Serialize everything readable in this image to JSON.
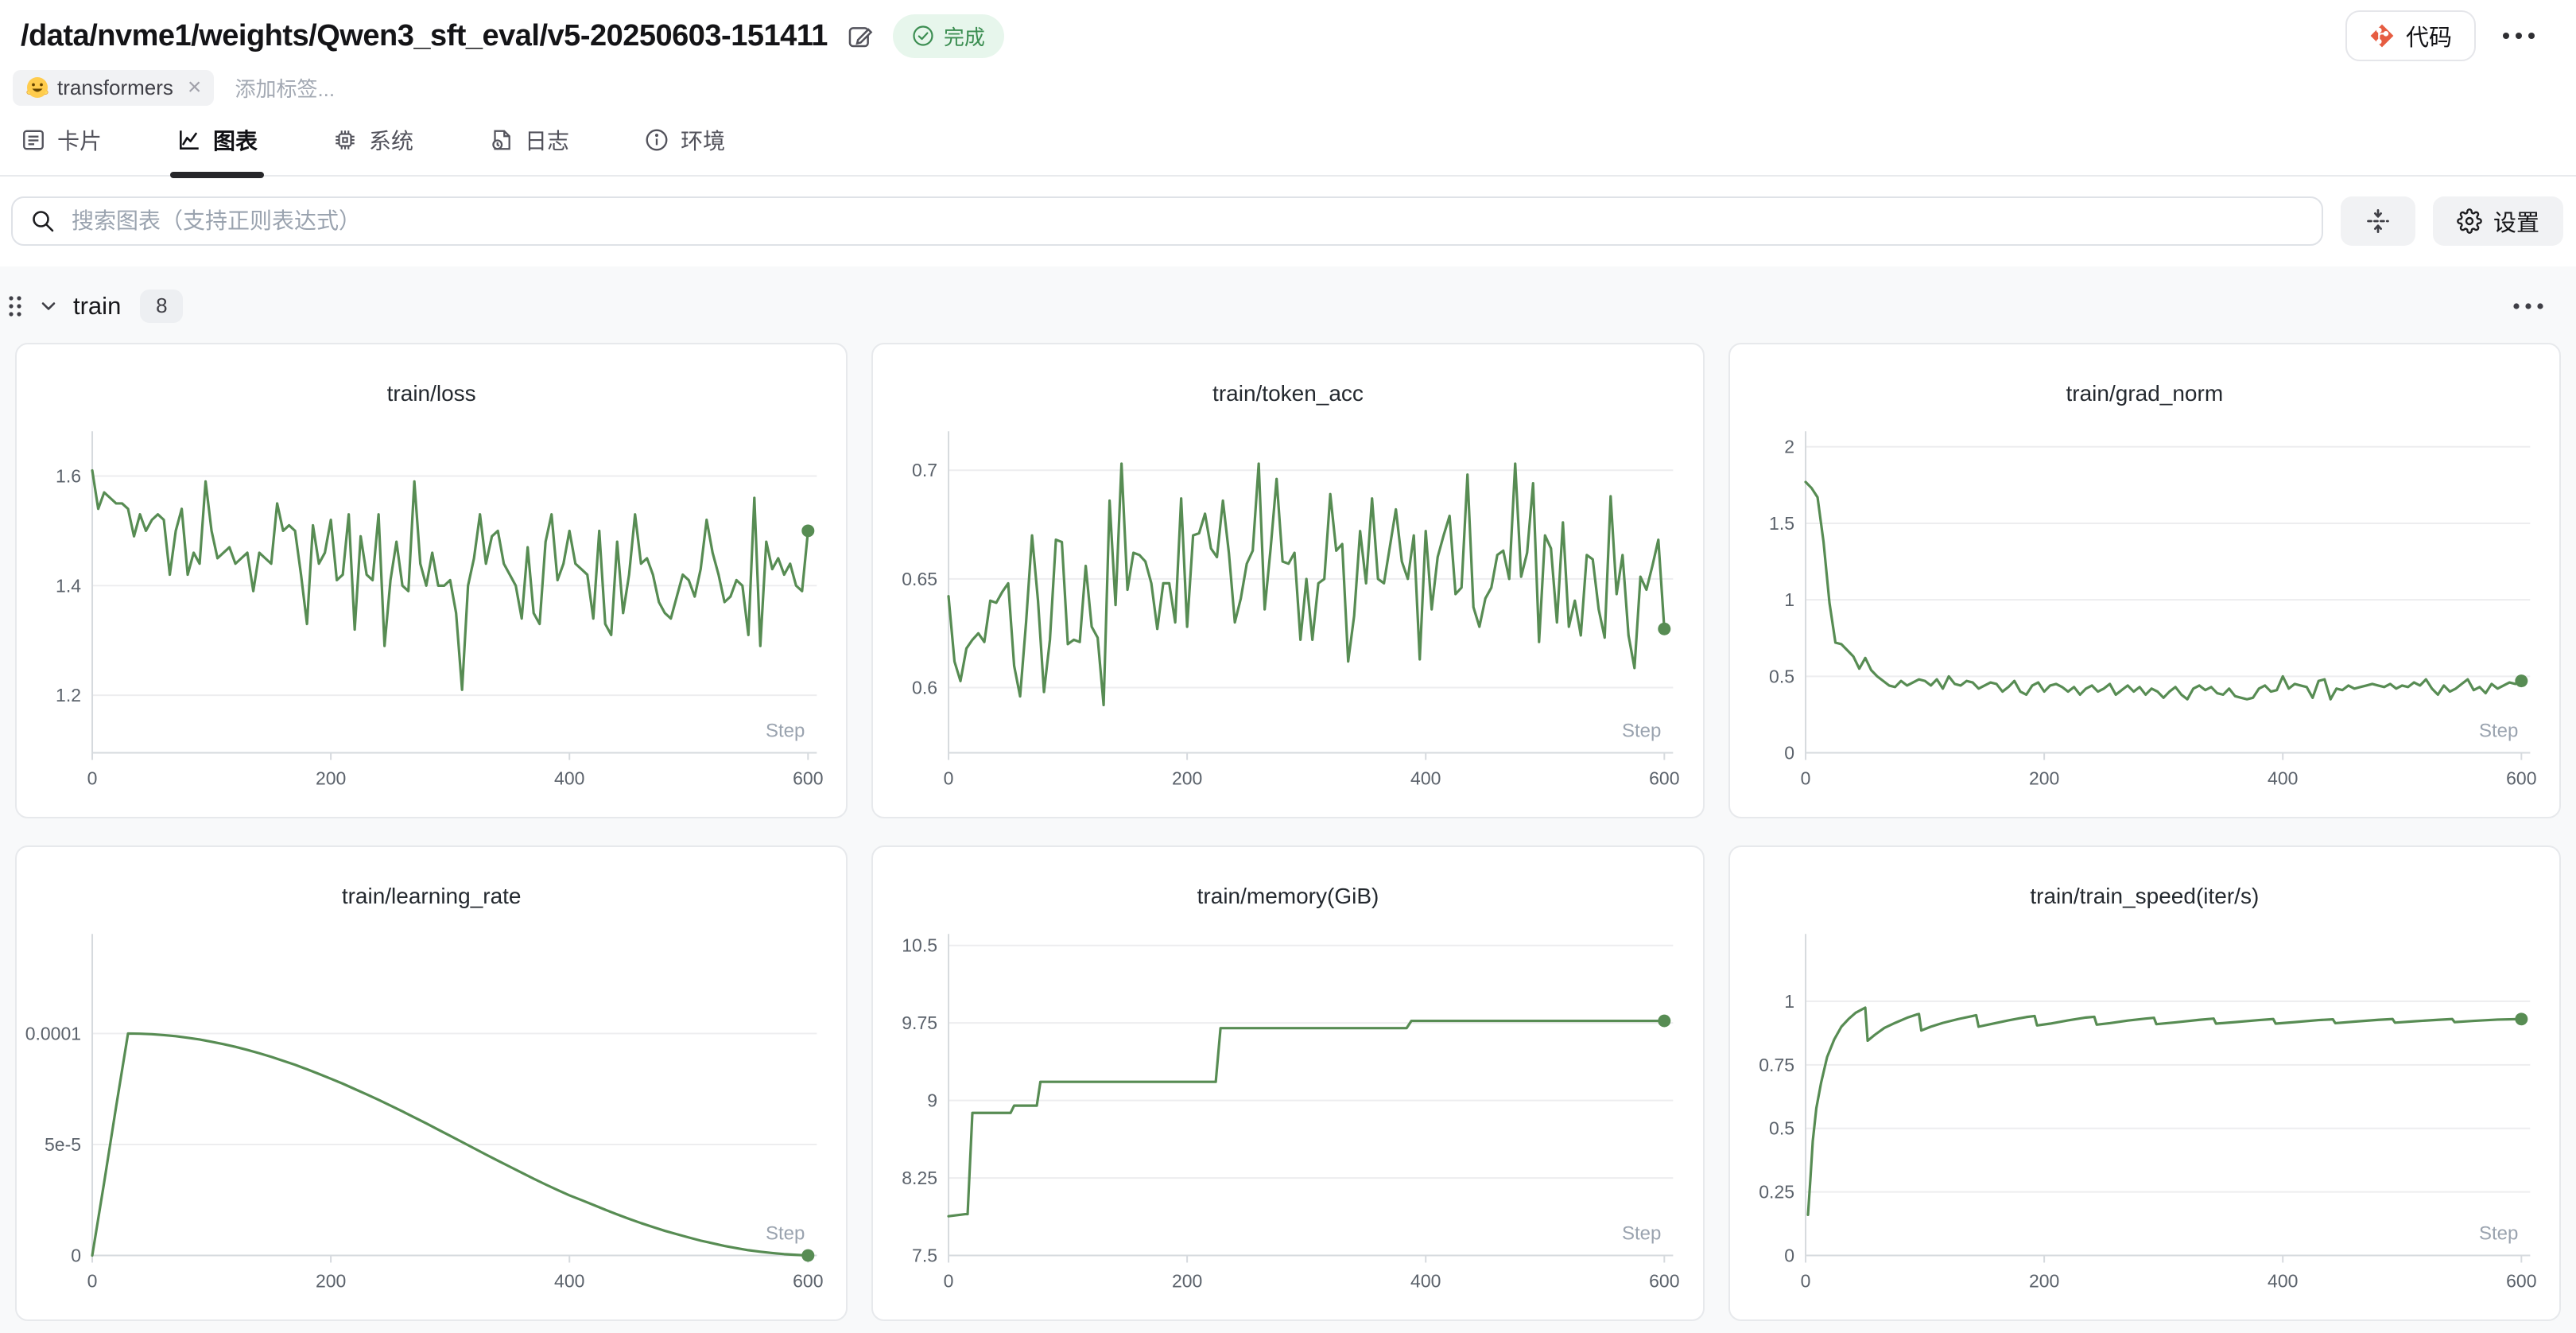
{
  "header": {
    "title": "/data/nvme1/weights/Qwen3_sft_eval/v5-20250603-151411",
    "status_badge": {
      "label": "完成",
      "color": "#3c8e52",
      "bg": "#e7f6ec"
    },
    "code_button": {
      "label": "代码",
      "icon_color": "#f05133"
    },
    "tags": [
      {
        "label": "transformers",
        "emoji": "hugging-face"
      }
    ],
    "add_tag_placeholder": "添加标签..."
  },
  "tabs": [
    {
      "label": "卡片",
      "active": false
    },
    {
      "label": "图表",
      "active": true
    },
    {
      "label": "系统",
      "active": false
    },
    {
      "label": "日志",
      "active": false
    },
    {
      "label": "环境",
      "active": false
    }
  ],
  "search": {
    "placeholder": "搜索图表（支持正则表达式）"
  },
  "toolbar": {
    "settings_label": "设置"
  },
  "group": {
    "name": "train",
    "count": "8"
  },
  "accent_color": "#578c53",
  "chart_data": "see charts[] — each entry holds the full plotted series",
  "charts": [
    {
      "title": "train/loss",
      "type": "line",
      "color": "#578c53",
      "x_label": "Step",
      "x_max": 600,
      "x_ticks": [
        0,
        200,
        400,
        600
      ],
      "y_min": 1.095,
      "y_max": 1.67,
      "y_ticks": [
        {
          "v": 1.2,
          "label": "1.2"
        },
        {
          "v": 1.4,
          "label": "1.4"
        },
        {
          "v": 1.6,
          "label": "1.6"
        }
      ],
      "values": [
        1.61,
        1.54,
        1.57,
        1.56,
        1.55,
        1.55,
        1.54,
        1.49,
        1.53,
        1.5,
        1.52,
        1.53,
        1.52,
        1.42,
        1.5,
        1.54,
        1.42,
        1.46,
        1.44,
        1.59,
        1.5,
        1.45,
        1.46,
        1.47,
        1.44,
        1.45,
        1.46,
        1.39,
        1.46,
        1.45,
        1.44,
        1.55,
        1.5,
        1.51,
        1.5,
        1.42,
        1.33,
        1.51,
        1.44,
        1.46,
        1.52,
        1.41,
        1.42,
        1.53,
        1.32,
        1.49,
        1.42,
        1.41,
        1.53,
        1.29,
        1.41,
        1.48,
        1.4,
        1.39,
        1.59,
        1.44,
        1.4,
        1.46,
        1.4,
        1.4,
        1.41,
        1.35,
        1.21,
        1.4,
        1.45,
        1.53,
        1.44,
        1.49,
        1.5,
        1.44,
        1.42,
        1.4,
        1.34,
        1.47,
        1.35,
        1.33,
        1.48,
        1.53,
        1.41,
        1.44,
        1.5,
        1.44,
        1.43,
        1.42,
        1.34,
        1.5,
        1.33,
        1.31,
        1.48,
        1.35,
        1.42,
        1.53,
        1.44,
        1.45,
        1.42,
        1.37,
        1.35,
        1.34,
        1.38,
        1.42,
        1.41,
        1.38,
        1.43,
        1.52,
        1.46,
        1.42,
        1.37,
        1.38,
        1.41,
        1.4,
        1.31,
        1.56,
        1.29,
        1.48,
        1.43,
        1.45,
        1.42,
        1.44,
        1.4,
        1.39,
        1.5
      ]
    },
    {
      "title": "train/token_acc",
      "type": "line",
      "color": "#578c53",
      "x_label": "Step",
      "x_max": 600,
      "x_ticks": [
        0,
        200,
        400,
        600
      ],
      "y_min": 0.57,
      "y_max": 0.715,
      "y_ticks": [
        {
          "v": 0.6,
          "label": "0.6"
        },
        {
          "v": 0.65,
          "label": "0.65"
        },
        {
          "v": 0.7,
          "label": "0.7"
        }
      ],
      "values": [
        0.642,
        0.612,
        0.603,
        0.618,
        0.622,
        0.625,
        0.621,
        0.64,
        0.639,
        0.644,
        0.648,
        0.61,
        0.596,
        0.63,
        0.67,
        0.64,
        0.598,
        0.622,
        0.668,
        0.667,
        0.62,
        0.622,
        0.621,
        0.656,
        0.628,
        0.623,
        0.592,
        0.686,
        0.638,
        0.703,
        0.645,
        0.662,
        0.661,
        0.658,
        0.648,
        0.627,
        0.648,
        0.648,
        0.63,
        0.687,
        0.628,
        0.67,
        0.671,
        0.68,
        0.664,
        0.66,
        0.686,
        0.662,
        0.63,
        0.641,
        0.657,
        0.663,
        0.703,
        0.636,
        0.664,
        0.696,
        0.658,
        0.657,
        0.662,
        0.622,
        0.65,
        0.622,
        0.648,
        0.65,
        0.689,
        0.663,
        0.666,
        0.612,
        0.633,
        0.672,
        0.648,
        0.687,
        0.65,
        0.648,
        0.665,
        0.682,
        0.658,
        0.65,
        0.67,
        0.613,
        0.672,
        0.636,
        0.66,
        0.67,
        0.679,
        0.643,
        0.646,
        0.698,
        0.637,
        0.628,
        0.641,
        0.646,
        0.661,
        0.663,
        0.65,
        0.703,
        0.651,
        0.662,
        0.694,
        0.621,
        0.67,
        0.664,
        0.63,
        0.676,
        0.628,
        0.64,
        0.624,
        0.661,
        0.659,
        0.636,
        0.623,
        0.688,
        0.643,
        0.661,
        0.624,
        0.609,
        0.651,
        0.645,
        0.656,
        0.668,
        0.627
      ]
    },
    {
      "title": "train/grad_norm",
      "type": "line",
      "color": "#578c53",
      "x_label": "Step",
      "x_max": 600,
      "x_ticks": [
        0,
        200,
        400,
        600
      ],
      "y_min": 0,
      "y_max": 2.06,
      "y_ticks": [
        {
          "v": 0,
          "label": "0"
        },
        {
          "v": 0.5,
          "label": "0.5"
        },
        {
          "v": 1,
          "label": "1"
        },
        {
          "v": 1.5,
          "label": "1.5"
        },
        {
          "v": 2,
          "label": "2"
        }
      ],
      "values": [
        1.77,
        1.73,
        1.67,
        1.38,
        0.98,
        0.72,
        0.71,
        0.67,
        0.63,
        0.55,
        0.62,
        0.54,
        0.5,
        0.47,
        0.44,
        0.43,
        0.47,
        0.44,
        0.46,
        0.48,
        0.47,
        0.44,
        0.48,
        0.42,
        0.5,
        0.45,
        0.44,
        0.47,
        0.46,
        0.42,
        0.44,
        0.46,
        0.45,
        0.4,
        0.43,
        0.47,
        0.4,
        0.38,
        0.44,
        0.46,
        0.4,
        0.44,
        0.45,
        0.43,
        0.4,
        0.43,
        0.38,
        0.42,
        0.44,
        0.4,
        0.42,
        0.45,
        0.38,
        0.41,
        0.44,
        0.4,
        0.43,
        0.38,
        0.42,
        0.4,
        0.36,
        0.4,
        0.43,
        0.38,
        0.35,
        0.42,
        0.44,
        0.41,
        0.43,
        0.39,
        0.38,
        0.42,
        0.37,
        0.36,
        0.35,
        0.36,
        0.42,
        0.44,
        0.4,
        0.41,
        0.5,
        0.42,
        0.45,
        0.44,
        0.43,
        0.36,
        0.47,
        0.48,
        0.35,
        0.42,
        0.41,
        0.44,
        0.42,
        0.43,
        0.44,
        0.45,
        0.44,
        0.43,
        0.45,
        0.42,
        0.44,
        0.43,
        0.46,
        0.44,
        0.48,
        0.42,
        0.38,
        0.44,
        0.4,
        0.42,
        0.45,
        0.48,
        0.41,
        0.43,
        0.39,
        0.45,
        0.42,
        0.44,
        0.46,
        0.45,
        0.47
      ]
    },
    {
      "title": "train/learning_rate",
      "type": "line",
      "color": "#578c53",
      "x_label": "Step",
      "x_max": 600,
      "x_ticks": [
        0,
        200,
        400,
        600
      ],
      "y_min": 0,
      "y_max": 0.000142,
      "y_ticks": [
        {
          "v": 0,
          "label": "0"
        },
        {
          "v": 5e-05,
          "label": "5e-5"
        },
        {
          "v": 0.0001,
          "label": "0.0001"
        }
      ],
      "values": [
        0.0,
        3.3e-05,
        6.7e-05,
        0.0001,
        9.99e-05,
        9.97e-05,
        9.93e-05,
        9.88e-05,
        9.81e-05,
        9.73e-05,
        9.63e-05,
        9.52e-05,
        9.4e-05,
        9.26e-05,
        9.11e-05,
        8.95e-05,
        8.77e-05,
        8.59e-05,
        8.39e-05,
        8.18e-05,
        7.96e-05,
        7.74e-05,
        7.5e-05,
        7.26e-05,
        7.01e-05,
        6.75e-05,
        6.49e-05,
        6.22e-05,
        5.95e-05,
        5.67e-05,
        5.39e-05,
        5.11e-05,
        4.83e-05,
        4.55e-05,
        4.27e-05,
        4e-05,
        3.73e-05,
        3.46e-05,
        3.2e-05,
        2.95e-05,
        2.71e-05,
        2.5e-05,
        2.28e-05,
        2.06e-05,
        1.85e-05,
        1.65e-05,
        1.46e-05,
        1.28e-05,
        1.11e-05,
        9.6e-06,
        8.1e-06,
        6.7e-06,
        5.5e-06,
        4.3e-06,
        3.3e-06,
        2.4e-06,
        1.7e-06,
        1.1e-06,
        6e-07,
        3e-07,
        0.0
      ]
    },
    {
      "title": "train/memory(GiB)",
      "type": "line",
      "color": "#578c53",
      "x_label": "Step",
      "x_max": 600,
      "x_ticks": [
        0,
        200,
        400,
        600
      ],
      "y_min": 7.5,
      "y_max": 10.55,
      "y_ticks": [
        {
          "v": 7.5,
          "label": "7.5"
        },
        {
          "v": 8.25,
          "label": "8.25"
        },
        {
          "v": 9,
          "label": "9"
        },
        {
          "v": 9.75,
          "label": "9.75"
        },
        {
          "v": 10.5,
          "label": "10.5"
        }
      ],
      "points": [
        [
          0,
          7.88
        ],
        [
          14,
          7.9
        ],
        [
          16,
          7.9
        ],
        [
          20,
          8.88
        ],
        [
          52,
          8.88
        ],
        [
          55,
          8.95
        ],
        [
          74,
          8.95
        ],
        [
          77,
          9.18
        ],
        [
          224,
          9.18
        ],
        [
          228,
          9.7
        ],
        [
          384,
          9.7
        ],
        [
          388,
          9.77
        ],
        [
          600,
          9.77
        ]
      ]
    },
    {
      "title": "train/train_speed(iter/s)",
      "type": "line",
      "color": "#578c53",
      "x_label": "Step",
      "x_max": 600,
      "x_ticks": [
        0,
        200,
        400,
        600
      ],
      "y_min": 0,
      "y_max": 1.24,
      "y_ticks": [
        {
          "v": 0,
          "label": "0"
        },
        {
          "v": 0.25,
          "label": "0.25"
        },
        {
          "v": 0.5,
          "label": "0.5"
        },
        {
          "v": 0.75,
          "label": "0.75"
        },
        {
          "v": 1,
          "label": "1"
        }
      ],
      "points": [
        [
          2,
          0.16
        ],
        [
          4,
          0.3
        ],
        [
          6,
          0.45
        ],
        [
          9,
          0.58
        ],
        [
          13,
          0.68
        ],
        [
          18,
          0.78
        ],
        [
          24,
          0.85
        ],
        [
          30,
          0.9
        ],
        [
          36,
          0.93
        ],
        [
          42,
          0.955
        ],
        [
          48,
          0.97
        ],
        [
          50,
          0.975
        ],
        [
          52,
          0.845
        ],
        [
          58,
          0.868
        ],
        [
          66,
          0.895
        ],
        [
          75,
          0.915
        ],
        [
          85,
          0.935
        ],
        [
          93,
          0.948
        ],
        [
          95,
          0.95
        ],
        [
          97,
          0.885
        ],
        [
          105,
          0.9
        ],
        [
          115,
          0.915
        ],
        [
          128,
          0.93
        ],
        [
          140,
          0.942
        ],
        [
          143,
          0.945
        ],
        [
          145,
          0.9
        ],
        [
          155,
          0.91
        ],
        [
          170,
          0.925
        ],
        [
          185,
          0.938
        ],
        [
          192,
          0.942
        ],
        [
          194,
          0.905
        ],
        [
          205,
          0.912
        ],
        [
          220,
          0.925
        ],
        [
          235,
          0.936
        ],
        [
          242,
          0.939
        ],
        [
          244,
          0.908
        ],
        [
          255,
          0.914
        ],
        [
          270,
          0.924
        ],
        [
          285,
          0.932
        ],
        [
          292,
          0.935
        ],
        [
          294,
          0.91
        ],
        [
          310,
          0.917
        ],
        [
          330,
          0.927
        ],
        [
          342,
          0.932
        ],
        [
          344,
          0.912
        ],
        [
          360,
          0.918
        ],
        [
          380,
          0.926
        ],
        [
          392,
          0.93
        ],
        [
          394,
          0.912
        ],
        [
          410,
          0.918
        ],
        [
          430,
          0.926
        ],
        [
          442,
          0.929
        ],
        [
          444,
          0.914
        ],
        [
          460,
          0.92
        ],
        [
          480,
          0.927
        ],
        [
          492,
          0.93
        ],
        [
          494,
          0.916
        ],
        [
          510,
          0.921
        ],
        [
          530,
          0.927
        ],
        [
          542,
          0.93
        ],
        [
          544,
          0.918
        ],
        [
          560,
          0.923
        ],
        [
          580,
          0.928
        ],
        [
          600,
          0.93
        ]
      ]
    }
  ]
}
